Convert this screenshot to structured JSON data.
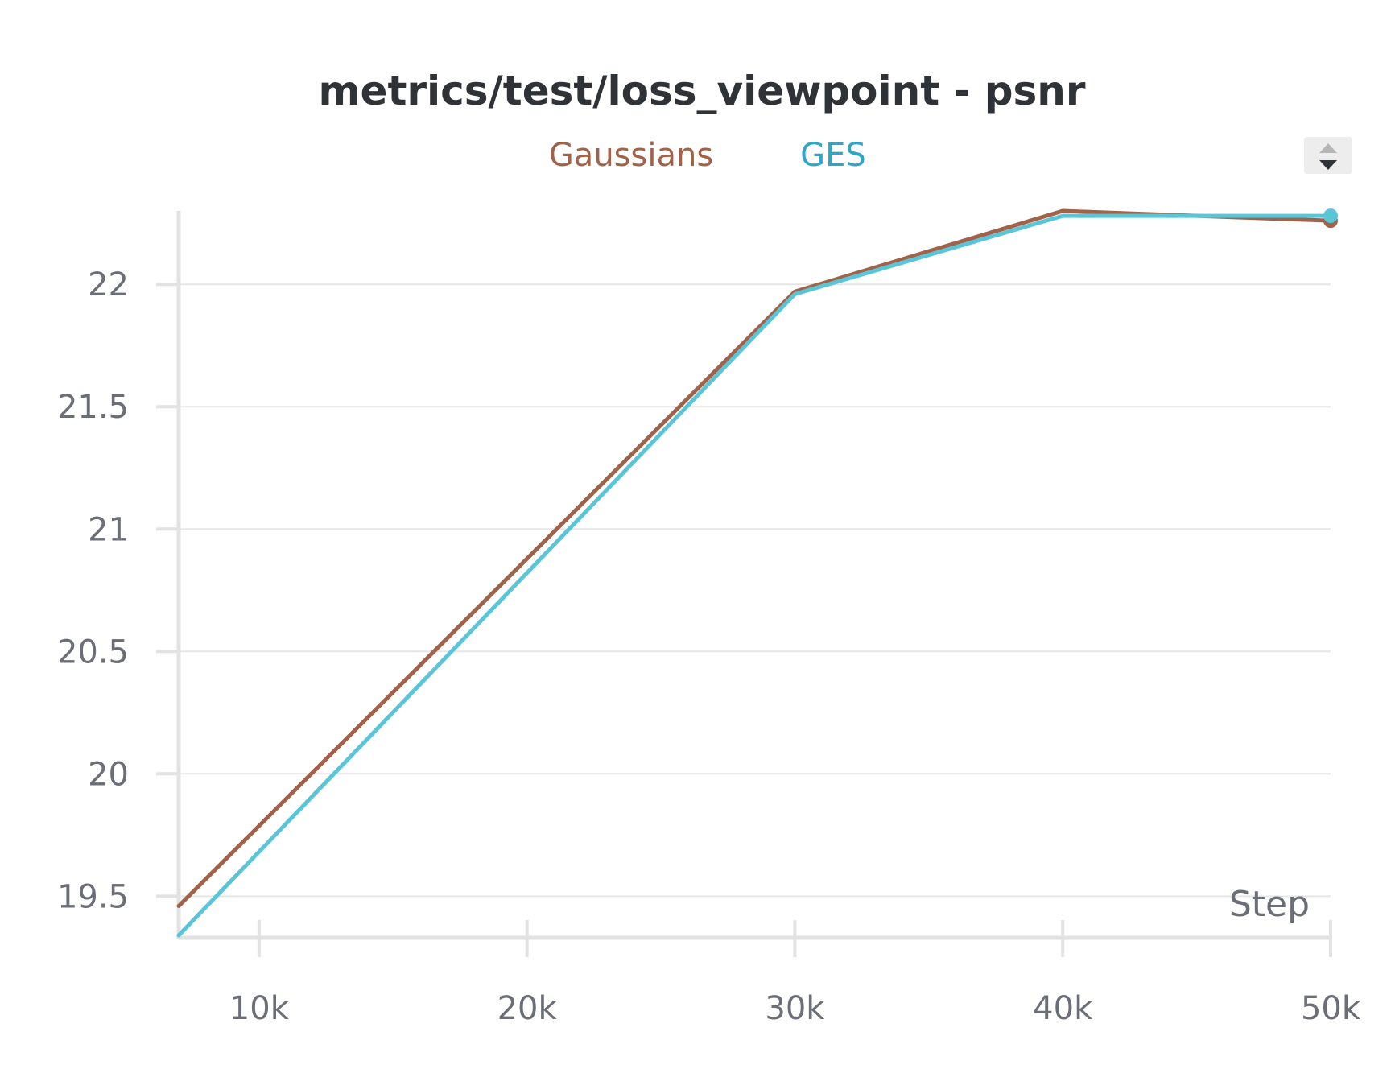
{
  "chart_data": {
    "type": "line",
    "title": "metrics/test/loss_viewpoint - psnr",
    "xlabel": "Step",
    "ylabel": "",
    "x_ticks": [
      {
        "value": 10000,
        "label": "10k"
      },
      {
        "value": 20000,
        "label": "20k"
      },
      {
        "value": 30000,
        "label": "30k"
      },
      {
        "value": 40000,
        "label": "40k"
      },
      {
        "value": 50000,
        "label": "50k"
      }
    ],
    "y_ticks": [
      {
        "value": 19.5,
        "label": "19.5"
      },
      {
        "value": 20,
        "label": "20"
      },
      {
        "value": 20.5,
        "label": "20.5"
      },
      {
        "value": 21,
        "label": "21"
      },
      {
        "value": 21.5,
        "label": "21.5"
      },
      {
        "value": 22,
        "label": "22"
      }
    ],
    "xlim": [
      7000,
      50000
    ],
    "ylim": [
      19.33,
      22.3
    ],
    "grid": true,
    "legend_position": "top-center",
    "series": [
      {
        "name": "Gaussians",
        "color": "#a0634a",
        "points": [
          {
            "x": 7000,
            "y": 19.46
          },
          {
            "x": 30000,
            "y": 21.97
          },
          {
            "x": 40000,
            "y": 22.3
          },
          {
            "x": 50000,
            "y": 22.26
          }
        ]
      },
      {
        "name": "GES",
        "color": "#5bc5d8",
        "points": [
          {
            "x": 7000,
            "y": 19.34
          },
          {
            "x": 30000,
            "y": 21.96
          },
          {
            "x": 40000,
            "y": 22.28
          },
          {
            "x": 50000,
            "y": 22.28
          }
        ]
      }
    ]
  },
  "legend_label_colors": {
    "Gaussians": "#a0634a",
    "GES": "#2fa6c7"
  },
  "controls": {
    "legend_scroll_icon": "up-down-arrows-icon"
  }
}
